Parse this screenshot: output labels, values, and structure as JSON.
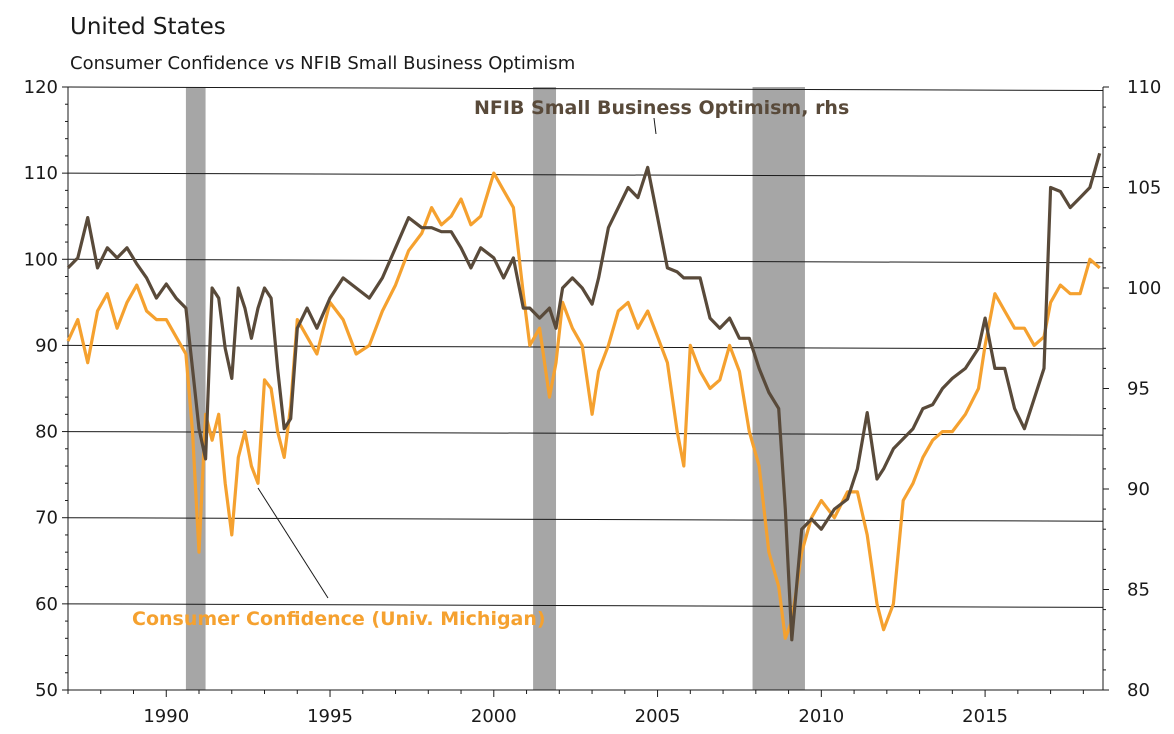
{
  "chart_data": {
    "type": "line",
    "title": "United States",
    "subtitle": "Consumer Confidence vs NFIB Small Business Optimism",
    "x_range": [
      1987.0,
      2018.6
    ],
    "x_ticks": [
      1990,
      1995,
      2000,
      2005,
      2010,
      2015
    ],
    "y_left": {
      "range": [
        50,
        120
      ],
      "ticks": [
        50,
        60,
        70,
        80,
        90,
        100,
        110,
        120
      ]
    },
    "y_right": {
      "range": [
        80,
        110
      ],
      "ticks": [
        80,
        85,
        90,
        95,
        100,
        105,
        110
      ]
    },
    "grid": true,
    "recessions": [
      [
        1990.6,
        1991.2
      ],
      [
        2001.2,
        2001.9
      ],
      [
        2007.9,
        2009.5
      ]
    ],
    "series": [
      {
        "name": "Consumer Confidence (Univ. Michigan)",
        "axis": "left",
        "color": "#f5a12f",
        "x": [
          1987.0,
          1987.3,
          1987.6,
          1987.9,
          1988.2,
          1988.5,
          1988.8,
          1989.1,
          1989.4,
          1989.7,
          1990.0,
          1990.3,
          1990.6,
          1990.8,
          1991.0,
          1991.2,
          1991.4,
          1991.6,
          1991.8,
          1992.0,
          1992.2,
          1992.4,
          1992.6,
          1992.8,
          1993.0,
          1993.2,
          1993.4,
          1993.6,
          1993.8,
          1994.0,
          1994.3,
          1994.6,
          1995.0,
          1995.4,
          1995.8,
          1996.2,
          1996.6,
          1997.0,
          1997.4,
          1997.8,
          1998.1,
          1998.4,
          1998.7,
          1999.0,
          1999.3,
          1999.6,
          2000.0,
          2000.3,
          2000.6,
          2000.9,
          2001.1,
          2001.4,
          2001.7,
          2001.9,
          2002.1,
          2002.4,
          2002.7,
          2003.0,
          2003.2,
          2003.5,
          2003.8,
          2004.1,
          2004.4,
          2004.7,
          2005.0,
          2005.3,
          2005.6,
          2005.8,
          2006.0,
          2006.3,
          2006.6,
          2006.9,
          2007.2,
          2007.5,
          2007.8,
          2008.1,
          2008.4,
          2008.7,
          2008.9,
          2009.1,
          2009.4,
          2009.7,
          2010.0,
          2010.4,
          2010.8,
          2011.1,
          2011.4,
          2011.7,
          2011.9,
          2012.2,
          2012.5,
          2012.8,
          2013.1,
          2013.4,
          2013.7,
          2014.0,
          2014.4,
          2014.8,
          2015.0,
          2015.3,
          2015.6,
          2015.9,
          2016.2,
          2016.5,
          2016.8,
          2017.0,
          2017.3,
          2017.6,
          2017.9,
          2018.2,
          2018.5
        ],
        "y": [
          90.5,
          93,
          88,
          94,
          96,
          92,
          95,
          97,
          94,
          93,
          93,
          91,
          89,
          80,
          66,
          82,
          79,
          82,
          74,
          68,
          77,
          80,
          76,
          74,
          86,
          85,
          80,
          77,
          83,
          93,
          91,
          89,
          95,
          93,
          89,
          90,
          94,
          97,
          101,
          103,
          106,
          104,
          105,
          107,
          104,
          105,
          110,
          108,
          106,
          96,
          90,
          92,
          84,
          88,
          95,
          92,
          90,
          82,
          87,
          90,
          94,
          95,
          92,
          94,
          91,
          88,
          80,
          76,
          90,
          87,
          85,
          86,
          90,
          87,
          80,
          76,
          66,
          62,
          56,
          58,
          66,
          70,
          72,
          70,
          73,
          73,
          68,
          60,
          57,
          60,
          72,
          74,
          77,
          79,
          80,
          80,
          82,
          85,
          90,
          96,
          94,
          92,
          92,
          90,
          91,
          95,
          97,
          96,
          96,
          100,
          99
        ]
      },
      {
        "name": "NFIB Small Business Optimism, rhs",
        "axis": "right",
        "color": "#594a3a",
        "x": [
          1987.0,
          1987.3,
          1987.6,
          1987.9,
          1988.2,
          1988.5,
          1988.8,
          1989.1,
          1989.4,
          1989.7,
          1990.0,
          1990.3,
          1990.6,
          1990.8,
          1991.0,
          1991.2,
          1991.4,
          1991.6,
          1991.8,
          1992.0,
          1992.2,
          1992.4,
          1992.6,
          1992.8,
          1993.0,
          1993.2,
          1993.4,
          1993.6,
          1993.8,
          1994.0,
          1994.3,
          1994.6,
          1995.0,
          1995.4,
          1995.8,
          1996.2,
          1996.6,
          1997.0,
          1997.4,
          1997.8,
          1998.1,
          1998.4,
          1998.7,
          1999.0,
          1999.3,
          1999.6,
          2000.0,
          2000.3,
          2000.6,
          2000.9,
          2001.1,
          2001.4,
          2001.7,
          2001.9,
          2002.1,
          2002.4,
          2002.7,
          2003.0,
          2003.2,
          2003.5,
          2003.8,
          2004.1,
          2004.4,
          2004.7,
          2005.0,
          2005.3,
          2005.6,
          2005.8,
          2006.0,
          2006.3,
          2006.6,
          2006.9,
          2007.2,
          2007.5,
          2007.8,
          2008.1,
          2008.4,
          2008.7,
          2008.9,
          2009.1,
          2009.4,
          2009.7,
          2010.0,
          2010.4,
          2010.8,
          2011.1,
          2011.4,
          2011.7,
          2011.9,
          2012.2,
          2012.5,
          2012.8,
          2013.1,
          2013.4,
          2013.7,
          2014.0,
          2014.4,
          2014.8,
          2015.0,
          2015.3,
          2015.6,
          2015.9,
          2016.2,
          2016.5,
          2016.8,
          2017.0,
          2017.3,
          2017.6,
          2017.9,
          2018.2,
          2018.5
        ],
        "y": [
          101,
          101.5,
          103.5,
          101,
          102,
          101.5,
          102,
          101.2,
          100.5,
          99.5,
          100.2,
          99.5,
          99,
          96,
          93,
          91.5,
          100,
          99.5,
          97,
          95.5,
          100,
          99,
          97.5,
          99,
          100,
          99.5,
          96,
          93,
          93.5,
          98,
          99,
          98,
          99.5,
          100.5,
          100,
          99.5,
          100.5,
          102,
          103.5,
          103,
          103,
          102.8,
          102.8,
          102,
          101,
          102,
          101.5,
          100.5,
          101.5,
          99,
          99,
          98.5,
          99,
          98,
          100,
          100.5,
          100,
          99.2,
          100.5,
          103,
          104,
          105,
          104.5,
          106,
          103.5,
          101,
          100.8,
          100.5,
          100.5,
          100.5,
          98.5,
          98,
          98.5,
          97.5,
          97.5,
          96,
          94.8,
          94,
          89,
          82.5,
          88,
          88.5,
          88,
          89,
          89.5,
          91,
          93.8,
          90.5,
          91,
          92,
          92.5,
          93,
          94,
          94.2,
          95,
          95.5,
          96,
          97,
          98.5,
          96,
          96,
          94,
          93,
          94.5,
          96,
          105,
          104.8,
          104,
          104.5,
          105,
          106.7
        ]
      }
    ]
  }
}
